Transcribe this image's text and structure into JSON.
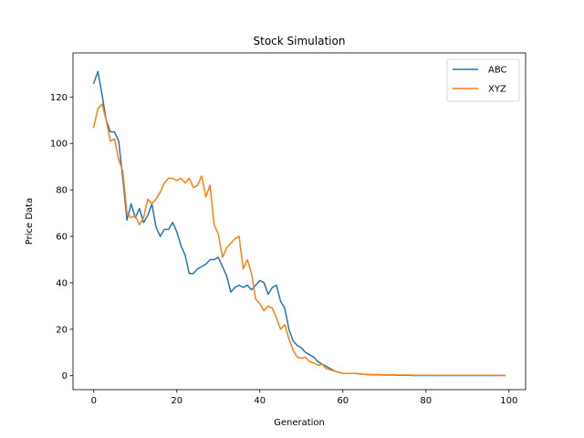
{
  "chart_data": {
    "type": "line",
    "title": "Stock Simulation",
    "xlabel": "Generation",
    "ylabel": "Price Data",
    "xlim": [
      -5,
      104
    ],
    "ylim": [
      -6,
      139
    ],
    "xticks": [
      0,
      20,
      40,
      60,
      80,
      100
    ],
    "yticks": [
      0,
      20,
      40,
      60,
      80,
      100,
      120
    ],
    "grid": false,
    "legend_position": "top-right",
    "x": [
      0,
      1,
      2,
      3,
      4,
      5,
      6,
      7,
      8,
      9,
      10,
      11,
      12,
      13,
      14,
      15,
      16,
      17,
      18,
      19,
      20,
      21,
      22,
      23,
      24,
      25,
      26,
      27,
      28,
      29,
      30,
      31,
      32,
      33,
      34,
      35,
      36,
      37,
      38,
      39,
      40,
      41,
      42,
      43,
      44,
      45,
      46,
      47,
      48,
      49,
      50,
      51,
      52,
      53,
      54,
      55,
      56,
      57,
      58,
      59,
      60,
      61,
      62,
      63,
      64,
      65,
      66,
      67,
      68,
      69,
      70,
      71,
      72,
      73,
      74,
      75,
      76,
      77,
      78,
      79,
      80,
      81,
      82,
      83,
      84,
      85,
      86,
      87,
      88,
      89,
      90,
      91,
      92,
      93,
      94,
      95,
      96,
      97,
      98,
      99
    ],
    "series": [
      {
        "name": "ABC",
        "color": "#1f77b4",
        "values": [
          126,
          131,
          121,
          110,
          105,
          105,
          101,
          85,
          67,
          74,
          68,
          72,
          66,
          69,
          74,
          64,
          60,
          63,
          63,
          66,
          62,
          56,
          52,
          44,
          44,
          46,
          47,
          48,
          50,
          50,
          51,
          47,
          43,
          36,
          38,
          39,
          38,
          39,
          37,
          39,
          41,
          40,
          35,
          38,
          39,
          32,
          29,
          20,
          15,
          13,
          12,
          10,
          9,
          8,
          6,
          5,
          4,
          3,
          2,
          1.5,
          1,
          1,
          1,
          1,
          0.8,
          0.6,
          0.5,
          0.5,
          0.4,
          0.4,
          0.3,
          0.3,
          0.3,
          0.2,
          0.2,
          0.2,
          0.2,
          0.1,
          0.1,
          0.1,
          0.1,
          0.1,
          0.1,
          0.1,
          0.1,
          0.1,
          0.1,
          0.1,
          0.1,
          0.1,
          0.1,
          0.1,
          0.1,
          0.1,
          0.1,
          0.1,
          0.1,
          0.1,
          0.1,
          0.1
        ]
      },
      {
        "name": "XYZ",
        "color": "#ff7f0e",
        "values": [
          107,
          115,
          117,
          110,
          101,
          102,
          93,
          88,
          70,
          68,
          69,
          65,
          68,
          76,
          74,
          76,
          79,
          83,
          85,
          85,
          84,
          85,
          83,
          85,
          81,
          82,
          86,
          77,
          82,
          65,
          61,
          51,
          55,
          57,
          59,
          60,
          46,
          50,
          44,
          33,
          31,
          28,
          30,
          29,
          25,
          20,
          22,
          16,
          11,
          8,
          7.5,
          8,
          6,
          5.5,
          4.5,
          5,
          3,
          2.5,
          2,
          1.5,
          1,
          1,
          1,
          1,
          0.8,
          0.6,
          0.5,
          0.5,
          0.5,
          0.5,
          0.4,
          0.4,
          0.4,
          0.3,
          0.3,
          0.3,
          0.3,
          0.2,
          0.2,
          0.2,
          0.2,
          0.2,
          0.2,
          0.2,
          0.2,
          0.2,
          0.2,
          0.2,
          0.2,
          0.2,
          0.2,
          0.2,
          0.2,
          0.2,
          0.2,
          0.2,
          0.2,
          0.2,
          0.2,
          0.2
        ]
      }
    ]
  }
}
